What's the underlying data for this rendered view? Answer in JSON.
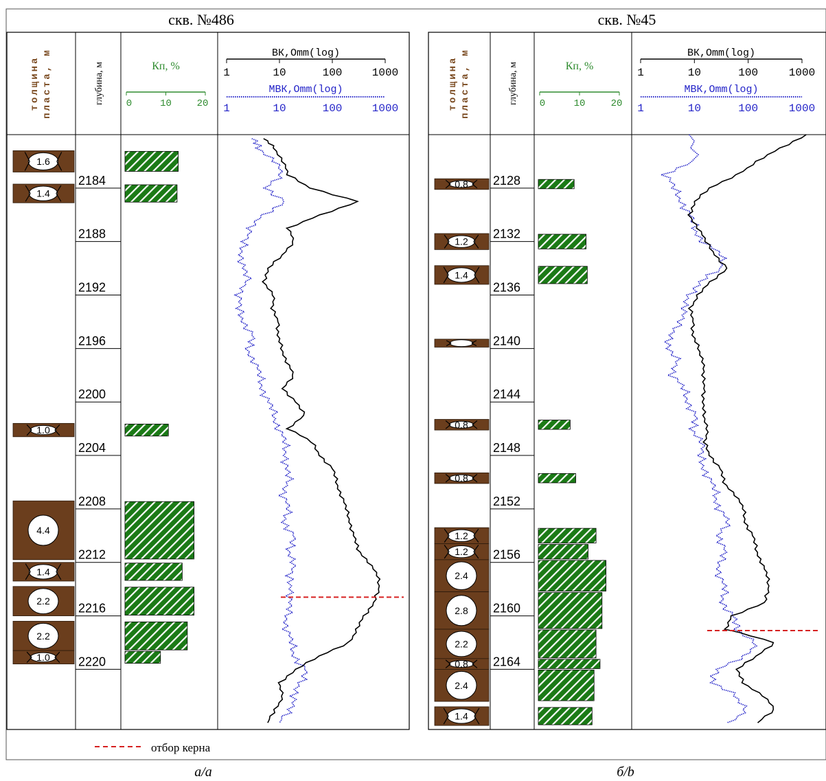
{
  "wells": [
    {
      "title": "скв. №486",
      "caption": "а/a",
      "depth_ticks": [
        2184,
        2188,
        2192,
        2196,
        2200,
        2204,
        2208,
        2212,
        2216,
        2220
      ],
      "depth_range": [
        2180,
        2224.5
      ],
      "beds": [
        {
          "top": 2181.2,
          "bottom": 2182.8,
          "thickness": "1.6",
          "kp": 13.5
        },
        {
          "top": 2183.7,
          "bottom": 2185.1,
          "thickness": "1.4",
          "kp": 13.2
        },
        {
          "top": 2201.6,
          "bottom": 2202.6,
          "thickness": "1.0",
          "kp": 11.0
        },
        {
          "top": 2207.4,
          "bottom": 2211.8,
          "thickness": "4.4",
          "kp": 17.5
        },
        {
          "top": 2212.0,
          "bottom": 2213.4,
          "thickness": "1.4",
          "kp": 14.5
        },
        {
          "top": 2213.8,
          "bottom": 2216.0,
          "thickness": "2.2",
          "kp": 17.5
        },
        {
          "top": 2216.4,
          "bottom": 2218.6,
          "thickness": "2.2",
          "kp": 15.8
        },
        {
          "top": 2218.6,
          "bottom": 2219.6,
          "thickness": "1.0",
          "kp": 9.0
        }
      ],
      "core_depth": 2214.6,
      "vk_profile": [
        [
          2180.3,
          5
        ],
        [
          2181,
          8
        ],
        [
          2182,
          12
        ],
        [
          2183,
          14
        ],
        [
          2184,
          40
        ],
        [
          2185,
          300
        ],
        [
          2186,
          60
        ],
        [
          2187,
          15
        ],
        [
          2188,
          18
        ],
        [
          2189,
          12
        ],
        [
          2190,
          6
        ],
        [
          2191,
          5
        ],
        [
          2192,
          8
        ],
        [
          2193,
          7
        ],
        [
          2194,
          10
        ],
        [
          2195,
          9
        ],
        [
          2196,
          11
        ],
        [
          2197,
          14
        ],
        [
          2198,
          18
        ],
        [
          2199,
          12
        ],
        [
          2200,
          20
        ],
        [
          2201,
          30
        ],
        [
          2202,
          15
        ],
        [
          2203,
          40
        ],
        [
          2204,
          60
        ],
        [
          2205,
          100
        ],
        [
          2206,
          120
        ],
        [
          2207,
          150
        ],
        [
          2208,
          180
        ],
        [
          2209,
          220
        ],
        [
          2210,
          250
        ],
        [
          2211,
          300
        ],
        [
          2212,
          500
        ],
        [
          2213,
          700
        ],
        [
          2214,
          800
        ],
        [
          2215,
          600
        ],
        [
          2216,
          400
        ],
        [
          2217,
          300
        ],
        [
          2218,
          200
        ],
        [
          2219,
          60
        ],
        [
          2220,
          20
        ],
        [
          2221,
          10
        ],
        [
          2222,
          12
        ],
        [
          2223,
          8
        ],
        [
          2224,
          6
        ]
      ],
      "mvk_profile": [
        [
          2180.3,
          3
        ],
        [
          2181,
          4
        ],
        [
          2182,
          9
        ],
        [
          2183,
          10
        ],
        [
          2184,
          6
        ],
        [
          2185,
          12
        ],
        [
          2186,
          5
        ],
        [
          2187,
          3
        ],
        [
          2188,
          2
        ],
        [
          2189,
          2
        ],
        [
          2190,
          2
        ],
        [
          2191,
          2.5
        ],
        [
          2192,
          1.8
        ],
        [
          2193,
          1.6
        ],
        [
          2194,
          2.2
        ],
        [
          2195,
          3
        ],
        [
          2196,
          2.5
        ],
        [
          2197,
          3.5
        ],
        [
          2198,
          4
        ],
        [
          2199,
          5
        ],
        [
          2200,
          6
        ],
        [
          2201,
          8
        ],
        [
          2202,
          10
        ],
        [
          2203,
          12
        ],
        [
          2204,
          14
        ],
        [
          2205,
          13
        ],
        [
          2206,
          15
        ],
        [
          2207,
          12
        ],
        [
          2208,
          14
        ],
        [
          2209,
          13
        ],
        [
          2210,
          18
        ],
        [
          2211,
          15
        ],
        [
          2212,
          20
        ],
        [
          2213,
          14
        ],
        [
          2214,
          18
        ],
        [
          2215,
          15
        ],
        [
          2216,
          14
        ],
        [
          2217,
          14
        ],
        [
          2218,
          16
        ],
        [
          2219,
          20
        ],
        [
          2220,
          30
        ],
        [
          2221,
          25
        ],
        [
          2222,
          20
        ],
        [
          2223,
          15
        ],
        [
          2224,
          10
        ]
      ]
    },
    {
      "title": "скв. №45",
      "caption": "б/b",
      "depth_ticks": [
        2128,
        2132,
        2136,
        2140,
        2144,
        2148,
        2152,
        2156,
        2160,
        2164
      ],
      "depth_range": [
        2124,
        2168.5
      ],
      "beds": [
        {
          "top": 2127.3,
          "bottom": 2128.1,
          "thickness": "0.8",
          "kp": 9.0
        },
        {
          "top": 2131.4,
          "bottom": 2132.6,
          "thickness": "1.2",
          "kp": 12.0
        },
        {
          "top": 2133.8,
          "bottom": 2135.2,
          "thickness": "1.4",
          "kp": 12.3
        },
        {
          "top": 2139.3,
          "bottom": 2139.9,
          "thickness": "",
          "kp": 0
        },
        {
          "top": 2145.3,
          "bottom": 2146.1,
          "thickness": "0.8",
          "kp": 8.0
        },
        {
          "top": 2149.3,
          "bottom": 2150.1,
          "thickness": "0.8",
          "kp": 9.4
        },
        {
          "top": 2153.4,
          "bottom": 2154.6,
          "thickness": "1.2",
          "kp": 14.5
        },
        {
          "top": 2154.6,
          "bottom": 2155.8,
          "thickness": "1.2",
          "kp": 12.5
        },
        {
          "top": 2155.8,
          "bottom": 2158.2,
          "thickness": "2.4",
          "kp": 17.0
        },
        {
          "top": 2158.2,
          "bottom": 2161.0,
          "thickness": "2.8",
          "kp": 16.0
        },
        {
          "top": 2161.0,
          "bottom": 2163.2,
          "thickness": "2.2",
          "kp": 14.5
        },
        {
          "top": 2163.2,
          "bottom": 2164.0,
          "thickness": "0.8",
          "kp": 15.5
        },
        {
          "top": 2164.0,
          "bottom": 2166.4,
          "thickness": "2.4",
          "kp": 14.0
        },
        {
          "top": 2166.8,
          "bottom": 2168.2,
          "thickness": "1.4",
          "kp": 13.5
        }
      ],
      "core_depth": 2161.1,
      "vk_profile": [
        [
          2124,
          1200
        ],
        [
          2125,
          400
        ],
        [
          2126,
          150
        ],
        [
          2127,
          60
        ],
        [
          2128,
          20
        ],
        [
          2129,
          10
        ],
        [
          2130,
          8
        ],
        [
          2131,
          12
        ],
        [
          2132,
          16
        ],
        [
          2133,
          25
        ],
        [
          2134,
          40
        ],
        [
          2135,
          20
        ],
        [
          2136,
          12
        ],
        [
          2137,
          8
        ],
        [
          2138,
          10
        ],
        [
          2139,
          9
        ],
        [
          2140,
          12
        ],
        [
          2141,
          15
        ],
        [
          2142,
          14
        ],
        [
          2143,
          16
        ],
        [
          2144,
          14
        ],
        [
          2145,
          15
        ],
        [
          2146,
          18
        ],
        [
          2147,
          15
        ],
        [
          2148,
          20
        ],
        [
          2149,
          30
        ],
        [
          2150,
          35
        ],
        [
          2151,
          60
        ],
        [
          2152,
          80
        ],
        [
          2153,
          90
        ],
        [
          2154,
          120
        ],
        [
          2155,
          140
        ],
        [
          2156,
          180
        ],
        [
          2157,
          220
        ],
        [
          2158,
          250
        ],
        [
          2159,
          200
        ],
        [
          2160,
          50
        ],
        [
          2161,
          40
        ],
        [
          2162,
          300
        ],
        [
          2163,
          150
        ],
        [
          2164,
          60
        ],
        [
          2165,
          80
        ],
        [
          2166,
          200
        ],
        [
          2167,
          300
        ],
        [
          2168,
          150
        ]
      ],
      "mvk_profile": [
        [
          2124,
          8
        ],
        [
          2126,
          10
        ],
        [
          2127,
          3
        ],
        [
          2128,
          4
        ],
        [
          2129,
          6
        ],
        [
          2130,
          8
        ],
        [
          2131,
          10
        ],
        [
          2132,
          15
        ],
        [
          2133,
          30
        ],
        [
          2134,
          35
        ],
        [
          2135,
          12
        ],
        [
          2136,
          8
        ],
        [
          2137,
          7
        ],
        [
          2138,
          5
        ],
        [
          2139,
          4
        ],
        [
          2140,
          3
        ],
        [
          2141,
          5
        ],
        [
          2142,
          4
        ],
        [
          2143,
          6
        ],
        [
          2144,
          8
        ],
        [
          2145,
          10
        ],
        [
          2146,
          9
        ],
        [
          2147,
          15
        ],
        [
          2148,
          12
        ],
        [
          2149,
          16
        ],
        [
          2150,
          20
        ],
        [
          2151,
          25
        ],
        [
          2152,
          30
        ],
        [
          2153,
          40
        ],
        [
          2154,
          30
        ],
        [
          2155,
          35
        ],
        [
          2156,
          30
        ],
        [
          2157,
          30
        ],
        [
          2158,
          35
        ],
        [
          2159,
          35
        ],
        [
          2160,
          50
        ],
        [
          2161,
          60
        ],
        [
          2162,
          150
        ],
        [
          2163,
          80
        ],
        [
          2164,
          30
        ],
        [
          2165,
          20
        ],
        [
          2166,
          60
        ],
        [
          2167,
          100
        ],
        [
          2168,
          40
        ]
      ]
    }
  ],
  "headers": {
    "thickness": "толщина пласта, м",
    "depth": "глубина, м",
    "kp": "Кп, %",
    "kp_ticks": [
      "0",
      "10",
      "20"
    ],
    "vk": "ВК,Omm(log)",
    "mvk": "МВК,Omm(log)",
    "res_ticks": [
      "1",
      "10",
      "100",
      "1000"
    ]
  },
  "legend": {
    "label": "отбор керна",
    "line_color": "#d62020"
  },
  "colors": {
    "bed": "#6b3e1d",
    "kp_fill": "#1b7a16",
    "kp_axis": "#2e8b2e",
    "vk": "#000000",
    "mvk": "#2323c8",
    "core": "#d62020"
  }
}
